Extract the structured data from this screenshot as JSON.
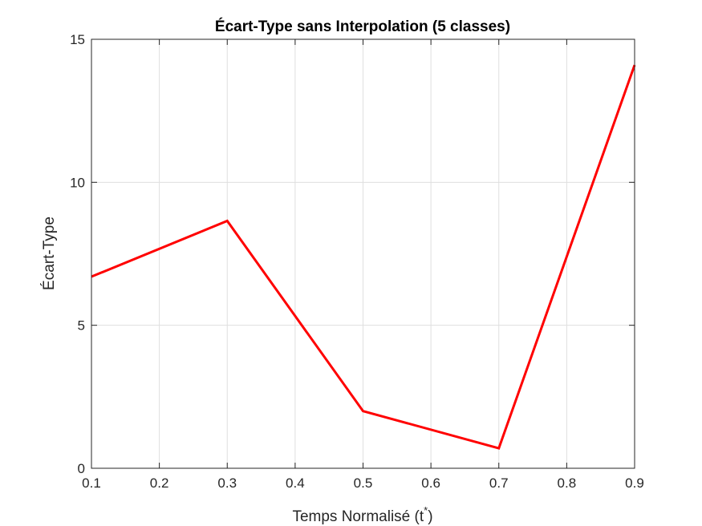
{
  "chart_data": {
    "type": "line",
    "title": "Écart-Type sans Interpolation (5 classes)",
    "xlabel": "Temps Normalisé (t",
    "xlabel_superscript": "*",
    "xlabel_suffix": ")",
    "ylabel": "Écart-Type",
    "xlim": [
      0.1,
      0.9
    ],
    "ylim": [
      0,
      15
    ],
    "xticks": [
      0.1,
      0.2,
      0.3,
      0.4,
      0.5,
      0.6,
      0.7,
      0.8,
      0.9
    ],
    "xtick_labels": [
      "0.1",
      "0.2",
      "0.3",
      "0.4",
      "0.5",
      "0.6",
      "0.7",
      "0.8",
      "0.9"
    ],
    "yticks": [
      0,
      5,
      10,
      15
    ],
    "ytick_labels": [
      "0",
      "5",
      "10",
      "15"
    ],
    "grid": true,
    "series": [
      {
        "color": "#ff0000",
        "x": [
          0.1,
          0.3,
          0.5,
          0.7,
          0.9
        ],
        "y": [
          6.7,
          8.65,
          2.0,
          0.7,
          14.1
        ]
      }
    ]
  }
}
